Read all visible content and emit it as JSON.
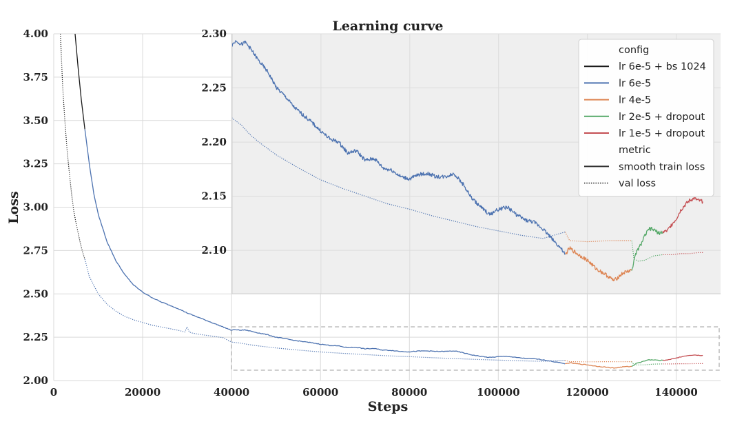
{
  "chart_data": {
    "type": "line",
    "title": "Learning curve",
    "xlabel": "Steps",
    "ylabel": "Loss",
    "xlim": [
      0,
      150000
    ],
    "ylim": [
      2.0,
      4.0
    ],
    "xticks": [
      "0",
      "20000",
      "40000",
      "60000",
      "80000",
      "100000",
      "120000",
      "140000"
    ],
    "yticks": [
      "2.00",
      "2.25",
      "2.50",
      "2.75",
      "3.00",
      "3.25",
      "3.50",
      "3.75",
      "4.00"
    ],
    "grid": true,
    "inset": {
      "xlim": [
        40000,
        150000
      ],
      "ylim": [
        2.06,
        2.3
      ],
      "yticks": [
        "2.10",
        "2.15",
        "2.20",
        "2.25",
        "2.30"
      ],
      "zoom_box": {
        "x": [
          40000,
          150000
        ],
        "y": [
          2.06,
          2.31
        ]
      }
    },
    "legend": {
      "placement": "top-right",
      "groups": [
        {
          "header": "config",
          "entries": [
            {
              "label": "lr 6e-5 + bs 1024",
              "color": "#1a1a1a",
              "style": "solid"
            },
            {
              "label": "lr 6e-5",
              "color": "#4c72b0",
              "style": "solid"
            },
            {
              "label": "lr 4e-5",
              "color": "#dd8452",
              "style": "solid"
            },
            {
              "label": "lr 2e-5 + dropout",
              "color": "#55a868",
              "style": "solid"
            },
            {
              "label": "lr 1e-5 + dropout",
              "color": "#c44e52",
              "style": "solid"
            }
          ]
        },
        {
          "header": "metric",
          "entries": [
            {
              "label": "smooth train loss",
              "color": "#333333",
              "style": "solid"
            },
            {
              "label": "val loss",
              "color": "#333333",
              "style": "dotted"
            }
          ]
        }
      ]
    },
    "series": [
      {
        "name": "lr 6e-5 + bs 1024",
        "metric": "smooth train loss",
        "color": "#1a1a1a",
        "style": "solid",
        "x": [
          4800,
          5500,
          6200,
          7000
        ],
        "y": [
          4.0,
          3.8,
          3.62,
          3.45
        ]
      },
      {
        "name": "lr 6e-5 + bs 1024",
        "metric": "val loss",
        "color": "#1a1a1a",
        "style": "dotted",
        "x": [
          1500,
          2000,
          2500,
          3000,
          3500,
          4000,
          4500,
          5000,
          5500,
          6000,
          6500,
          7000
        ],
        "y": [
          4.0,
          3.7,
          3.5,
          3.33,
          3.2,
          3.08,
          2.98,
          2.91,
          2.85,
          2.79,
          2.74,
          2.7
        ]
      },
      {
        "name": "lr 6e-5",
        "metric": "smooth train loss",
        "color": "#4c72b0",
        "style": "solid",
        "x": [
          7000,
          8000,
          9000,
          10000,
          12000,
          14000,
          16000,
          18000,
          20000,
          22000,
          24000,
          26000,
          28000,
          30000,
          32000,
          34000,
          36000,
          38000,
          40000,
          41000,
          42000,
          43000,
          44000,
          46000,
          48000,
          50000,
          52000,
          54000,
          56000,
          58000,
          60000,
          62000,
          64000,
          66000,
          68000,
          70000,
          72000,
          74000,
          76000,
          78000,
          80000,
          82000,
          84000,
          86000,
          88000,
          90000,
          92000,
          94000,
          96000,
          98000,
          100000,
          102000,
          104000,
          106000,
          108000,
          110000,
          112000,
          114000,
          115000
        ],
        "y": [
          3.45,
          3.25,
          3.08,
          2.96,
          2.8,
          2.69,
          2.61,
          2.55,
          2.51,
          2.48,
          2.455,
          2.435,
          2.415,
          2.39,
          2.37,
          2.35,
          2.33,
          2.31,
          2.29,
          2.294,
          2.29,
          2.292,
          2.287,
          2.275,
          2.265,
          2.25,
          2.242,
          2.232,
          2.225,
          2.218,
          2.21,
          2.203,
          2.2,
          2.19,
          2.192,
          2.183,
          2.185,
          2.176,
          2.174,
          2.168,
          2.166,
          2.17,
          2.171,
          2.168,
          2.168,
          2.171,
          2.161,
          2.148,
          2.14,
          2.133,
          2.138,
          2.14,
          2.133,
          2.128,
          2.126,
          2.12,
          2.111,
          2.102,
          2.096
        ]
      },
      {
        "name": "lr 6e-5",
        "metric": "val loss",
        "color": "#4c72b0",
        "style": "dotted",
        "x": [
          7000,
          8000,
          10000,
          12000,
          14000,
          16000,
          18000,
          20000,
          22000,
          24000,
          26000,
          28000,
          29500,
          30000,
          30500,
          31000,
          32000,
          34000,
          36000,
          38000,
          40000,
          42000,
          44000,
          46000,
          50000,
          55000,
          60000,
          65000,
          70000,
          75000,
          80000,
          85000,
          90000,
          95000,
          100000,
          105000,
          110000,
          115000
        ],
        "y": [
          2.7,
          2.6,
          2.5,
          2.44,
          2.4,
          2.37,
          2.35,
          2.335,
          2.32,
          2.31,
          2.3,
          2.29,
          2.28,
          2.31,
          2.28,
          2.275,
          2.27,
          2.262,
          2.255,
          2.248,
          2.222,
          2.216,
          2.207,
          2.2,
          2.188,
          2.176,
          2.165,
          2.157,
          2.15,
          2.143,
          2.138,
          2.132,
          2.127,
          2.122,
          2.118,
          2.114,
          2.111,
          2.117
        ]
      },
      {
        "name": "lr 4e-5",
        "metric": "smooth train loss",
        "color": "#dd8452",
        "style": "solid",
        "x": [
          115000,
          116000,
          118000,
          120000,
          122000,
          124000,
          126000,
          128000,
          130000
        ],
        "y": [
          2.096,
          2.102,
          2.096,
          2.091,
          2.083,
          2.078,
          2.072,
          2.079,
          2.082
        ]
      },
      {
        "name": "lr 4e-5",
        "metric": "val loss",
        "color": "#dd8452",
        "style": "dotted",
        "x": [
          115000,
          116000,
          120000,
          125000,
          130000
        ],
        "y": [
          2.117,
          2.109,
          2.108,
          2.109,
          2.109
        ]
      },
      {
        "name": "lr 2e-5 + dropout",
        "metric": "smooth train loss",
        "color": "#55a868",
        "style": "solid",
        "x": [
          130000,
          131000,
          132000,
          133000,
          134000,
          135000,
          136000,
          137000
        ],
        "y": [
          2.082,
          2.098,
          2.105,
          2.114,
          2.12,
          2.119,
          2.116,
          2.117
        ]
      },
      {
        "name": "lr 2e-5 + dropout",
        "metric": "val loss",
        "color": "#55a868",
        "style": "dotted",
        "x": [
          130000,
          130500,
          131500,
          133000,
          135000,
          137000
        ],
        "y": [
          2.109,
          2.092,
          2.09,
          2.091,
          2.095,
          2.096
        ]
      },
      {
        "name": "lr 1e-5 + dropout",
        "metric": "smooth train loss",
        "color": "#c44e52",
        "style": "solid",
        "x": [
          137000,
          138000,
          139000,
          140000,
          141000,
          142000,
          143000,
          144000,
          145000,
          146000
        ],
        "y": [
          2.117,
          2.118,
          2.124,
          2.129,
          2.137,
          2.142,
          2.146,
          2.148,
          2.146,
          2.145
        ]
      },
      {
        "name": "lr 1e-5 + dropout",
        "metric": "val loss",
        "color": "#c44e52",
        "style": "dotted",
        "x": [
          137000,
          139000,
          141000,
          143000,
          145000,
          146000
        ],
        "y": [
          2.096,
          2.096,
          2.097,
          2.097,
          2.098,
          2.098
        ]
      }
    ]
  }
}
